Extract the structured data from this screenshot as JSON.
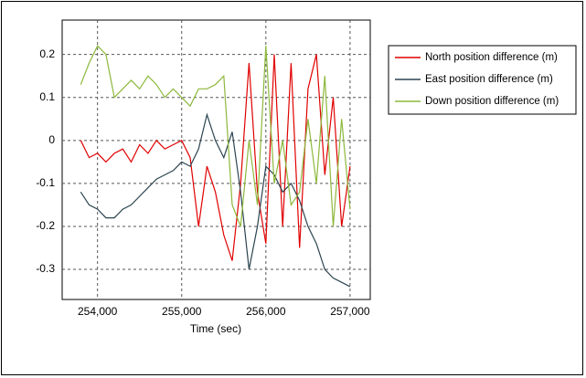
{
  "chart_data": {
    "type": "line",
    "x_label": "Time (sec)",
    "x": [
      253800,
      253900,
      254000,
      254100,
      254200,
      254300,
      254400,
      254500,
      254600,
      254700,
      254800,
      254900,
      255000,
      255100,
      255200,
      255300,
      255400,
      255500,
      255600,
      255700,
      255800,
      255900,
      256000,
      256100,
      256200,
      256300,
      256400,
      256500,
      256600,
      256700,
      256800,
      256900,
      257000
    ],
    "series": [
      {
        "name": "North position difference (m)",
        "color": "#e00000",
        "values": [
          0.0,
          -0.04,
          -0.03,
          -0.05,
          -0.03,
          -0.02,
          -0.05,
          -0.01,
          -0.03,
          0.0,
          -0.02,
          -0.01,
          0.0,
          -0.04,
          -0.2,
          -0.06,
          -0.12,
          -0.22,
          -0.28,
          -0.1,
          0.18,
          -0.12,
          -0.24,
          0.2,
          -0.2,
          0.18,
          -0.25,
          0.12,
          0.2,
          -0.08,
          0.1,
          -0.2,
          -0.06
        ]
      },
      {
        "name": "East position difference (m)",
        "color": "#2c4450",
        "values": [
          -0.12,
          -0.15,
          -0.16,
          -0.18,
          -0.18,
          -0.16,
          -0.15,
          -0.13,
          -0.11,
          -0.09,
          -0.08,
          -0.07,
          -0.05,
          -0.06,
          -0.02,
          0.06,
          0.0,
          -0.04,
          0.02,
          -0.12,
          -0.3,
          -0.2,
          -0.06,
          -0.08,
          -0.12,
          -0.1,
          -0.14,
          -0.2,
          -0.24,
          -0.3,
          -0.32,
          -0.33,
          -0.34
        ]
      },
      {
        "name": "Down position difference (m)",
        "color": "#8db83c",
        "values": [
          0.13,
          0.18,
          0.22,
          0.2,
          0.1,
          0.12,
          0.14,
          0.12,
          0.15,
          0.13,
          0.1,
          0.12,
          0.1,
          0.08,
          0.12,
          0.12,
          0.13,
          0.15,
          -0.15,
          -0.2,
          0.0,
          -0.15,
          0.22,
          -0.1,
          0.0,
          -0.15,
          -0.12,
          0.05,
          -0.1,
          0.15,
          -0.2,
          0.05,
          -0.16
        ]
      }
    ],
    "xlim": [
      253580,
      257240
    ],
    "xticks": [
      {
        "value": 254000,
        "label": "254,000"
      },
      {
        "value": 255000,
        "label": "255,000"
      },
      {
        "value": 256000,
        "label": "256,000"
      },
      {
        "value": 257000,
        "label": "257,000"
      }
    ],
    "ylim": [
      -0.37,
      0.28
    ],
    "yticks": [
      0.2,
      0.1,
      0,
      -0.1,
      -0.2,
      -0.3
    ],
    "grid": true
  }
}
